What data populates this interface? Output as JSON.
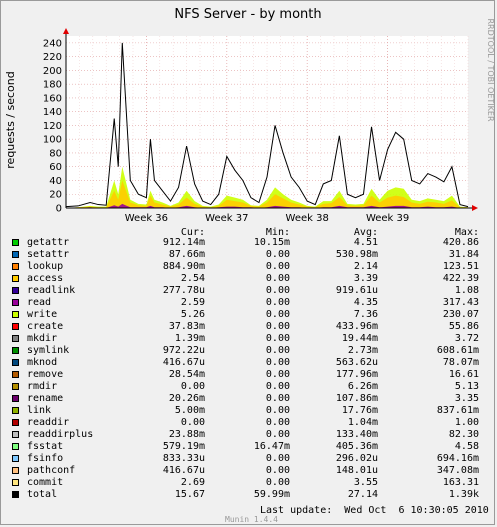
{
  "title": "NFS Server - by month",
  "side_label": "RRDTOOL / TOBI OETIKER",
  "footer_text": "Munin 1.4.4",
  "last_update": "Last update:  Wed Oct  6 10:30:05 2010",
  "legend_headers": [
    "Cur:",
    "Min:",
    "Avg:",
    "Max:"
  ],
  "colors": {
    "background": "#f0f0f0",
    "plot_bg": "#ffffff",
    "grid_major": "#e0a0a0",
    "axis_arrow": "#e00000"
  },
  "legend": [
    {
      "name": "getattr",
      "color": "#00cc00",
      "cur": "912.14m",
      "min": "10.15m",
      "avg": "4.51",
      "max": "420.86"
    },
    {
      "name": "setattr",
      "color": "#0066b3",
      "cur": "87.66m",
      "min": "0.00",
      "avg": "530.98m",
      "max": "31.84"
    },
    {
      "name": "lookup",
      "color": "#ff8000",
      "cur": "884.90m",
      "min": "0.00",
      "avg": "2.14",
      "max": "123.51"
    },
    {
      "name": "access",
      "color": "#ffcc00",
      "cur": "2.54",
      "min": "0.00",
      "avg": "3.39",
      "max": "422.39"
    },
    {
      "name": "readlink",
      "color": "#330099",
      "cur": "277.78u",
      "min": "0.00",
      "avg": "919.61u",
      "max": "1.08"
    },
    {
      "name": "read",
      "color": "#990099",
      "cur": "2.59",
      "min": "0.00",
      "avg": "4.35",
      "max": "317.43"
    },
    {
      "name": "write",
      "color": "#ccff00",
      "cur": "5.26",
      "min": "0.00",
      "avg": "7.36",
      "max": "230.07"
    },
    {
      "name": "create",
      "color": "#ff0000",
      "cur": "37.83m",
      "min": "0.00",
      "avg": "433.96m",
      "max": "55.86"
    },
    {
      "name": "mkdir",
      "color": "#808080",
      "cur": "1.39m",
      "min": "0.00",
      "avg": "19.44m",
      "max": "3.72"
    },
    {
      "name": "symlink",
      "color": "#008f00",
      "cur": "972.22u",
      "min": "0.00",
      "avg": "2.73m",
      "max": "608.61m"
    },
    {
      "name": "mknod",
      "color": "#00487d",
      "cur": "416.67u",
      "min": "0.00",
      "avg": "563.62u",
      "max": "78.07m"
    },
    {
      "name": "remove",
      "color": "#b35a00",
      "cur": "28.54m",
      "min": "0.00",
      "avg": "177.96m",
      "max": "16.61"
    },
    {
      "name": "rmdir",
      "color": "#b38f00",
      "cur": "0.00",
      "min": "0.00",
      "avg": "6.26m",
      "max": "5.13"
    },
    {
      "name": "rename",
      "color": "#6b006b",
      "cur": "20.26m",
      "min": "0.00",
      "avg": "107.86m",
      "max": "3.35"
    },
    {
      "name": "link",
      "color": "#8fb300",
      "cur": "5.00m",
      "min": "0.00",
      "avg": "17.76m",
      "max": "837.61m"
    },
    {
      "name": "readdir",
      "color": "#b30000",
      "cur": "0.00",
      "min": "0.00",
      "avg": "1.04m",
      "max": "1.00"
    },
    {
      "name": "readdirplus",
      "color": "#bebebe",
      "cur": "23.88m",
      "min": "0.00",
      "avg": "133.40m",
      "max": "82.30"
    },
    {
      "name": "fsstat",
      "color": "#80ff80",
      "cur": "579.19m",
      "min": "16.47m",
      "avg": "405.36m",
      "max": "4.58"
    },
    {
      "name": "fsinfo",
      "color": "#80c9ff",
      "cur": "833.33u",
      "min": "0.00",
      "avg": "296.02u",
      "max": "694.16m"
    },
    {
      "name": "pathconf",
      "color": "#ffc080",
      "cur": "416.67u",
      "min": "0.00",
      "avg": "148.01u",
      "max": "347.08m"
    },
    {
      "name": "commit",
      "color": "#ffe680",
      "cur": "2.69",
      "min": "0.00",
      "avg": "3.55",
      "max": "163.31"
    },
    {
      "name": "total",
      "color": "#000000",
      "cur": "15.67",
      "min": "59.99m",
      "avg": "27.14",
      "max": "1.39k"
    }
  ],
  "chart_data": {
    "type": "area",
    "title": "NFS Server - by month",
    "ylabel": "requests / second",
    "xlabel": "",
    "x_tick_labels": [
      "Week 36",
      "Week 37",
      "Week 38",
      "Week 39"
    ],
    "ylim": [
      0,
      250
    ],
    "y_ticks": [
      0,
      20,
      40,
      60,
      80,
      100,
      120,
      140,
      160,
      180,
      200,
      220,
      240
    ],
    "grid": true,
    "x": [
      0,
      3,
      6,
      8,
      10,
      12,
      13,
      14,
      16,
      18,
      20,
      21,
      22,
      24,
      26,
      28,
      30,
      32,
      34,
      36,
      38,
      40,
      42,
      44,
      46,
      48,
      50,
      52,
      54,
      56,
      58,
      60,
      62,
      64,
      66,
      68,
      70,
      72,
      74,
      76,
      78,
      80,
      82,
      84,
      86,
      88,
      90,
      92,
      94,
      96,
      98,
      100
    ],
    "series": [
      {
        "name": "total",
        "color": "#000000",
        "values": [
          2,
          3,
          8,
          5,
          4,
          130,
          60,
          240,
          40,
          20,
          15,
          100,
          40,
          25,
          10,
          30,
          90,
          35,
          10,
          5,
          20,
          75,
          55,
          40,
          15,
          8,
          45,
          120,
          80,
          45,
          30,
          10,
          5,
          35,
          40,
          105,
          20,
          15,
          20,
          118,
          40,
          85,
          110,
          100,
          40,
          35,
          50,
          45,
          38,
          60,
          5,
          2
        ]
      },
      {
        "name": "write",
        "color": "#ccff00",
        "values": [
          0,
          1,
          3,
          2,
          2,
          40,
          20,
          60,
          12,
          6,
          5,
          25,
          12,
          8,
          3,
          8,
          25,
          10,
          3,
          2,
          5,
          18,
          15,
          12,
          4,
          3,
          12,
          30,
          20,
          12,
          8,
          3,
          2,
          10,
          10,
          25,
          6,
          5,
          6,
          28,
          12,
          25,
          30,
          28,
          12,
          10,
          14,
          12,
          10,
          18,
          2,
          1
        ]
      },
      {
        "name": "access",
        "color": "#ffcc00",
        "values": [
          0,
          1,
          2,
          1,
          1,
          25,
          12,
          40,
          8,
          4,
          3,
          18,
          8,
          5,
          2,
          5,
          15,
          6,
          2,
          1,
          3,
          12,
          10,
          8,
          3,
          2,
          8,
          20,
          14,
          8,
          5,
          2,
          1,
          6,
          7,
          16,
          4,
          3,
          4,
          18,
          8,
          15,
          18,
          16,
          8,
          6,
          9,
          8,
          6,
          11,
          1,
          1
        ]
      },
      {
        "name": "read",
        "color": "#990099",
        "values": [
          0,
          0,
          1,
          0,
          0,
          4,
          2,
          6,
          1,
          1,
          1,
          3,
          1,
          1,
          0,
          1,
          3,
          1,
          0,
          0,
          1,
          2,
          2,
          1,
          1,
          0,
          1,
          3,
          2,
          1,
          1,
          0,
          0,
          1,
          1,
          3,
          1,
          1,
          1,
          3,
          1,
          2,
          3,
          3,
          1,
          1,
          2,
          1,
          1,
          2,
          0,
          0
        ]
      }
    ]
  }
}
